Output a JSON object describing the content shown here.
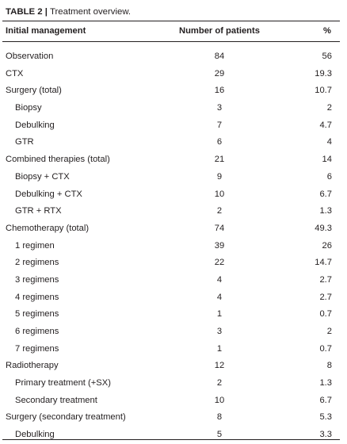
{
  "caption": {
    "label": "TABLE 2 |",
    "title": "Treatment overview."
  },
  "table": {
    "headers": [
      "Initial management",
      "Number of patients",
      "%"
    ],
    "rows": [
      {
        "label": "Observation",
        "count": "84",
        "percent": "56",
        "indent": false
      },
      {
        "label": "CTX",
        "count": "29",
        "percent": "19.3",
        "indent": false
      },
      {
        "label": "Surgery (total)",
        "count": "16",
        "percent": "10.7",
        "indent": false
      },
      {
        "label": "Biopsy",
        "count": "3",
        "percent": "2",
        "indent": true
      },
      {
        "label": "Debulking",
        "count": "7",
        "percent": "4.7",
        "indent": true
      },
      {
        "label": "GTR",
        "count": "6",
        "percent": "4",
        "indent": true
      },
      {
        "label": "Combined therapies (total)",
        "count": "21",
        "percent": "14",
        "indent": false
      },
      {
        "label": "Biopsy + CTX",
        "count": "9",
        "percent": "6",
        "indent": true
      },
      {
        "label": "Debulking + CTX",
        "count": "10",
        "percent": "6.7",
        "indent": true
      },
      {
        "label": "GTR + RTX",
        "count": "2",
        "percent": "1.3",
        "indent": true
      },
      {
        "label": "Chemotherapy (total)",
        "count": "74",
        "percent": "49.3",
        "indent": false
      },
      {
        "label": "1 regimen",
        "count": "39",
        "percent": "26",
        "indent": true
      },
      {
        "label": "2 regimens",
        "count": "22",
        "percent": "14.7",
        "indent": true
      },
      {
        "label": "3 regimens",
        "count": "4",
        "percent": "2.7",
        "indent": true
      },
      {
        "label": "4 regimens",
        "count": "4",
        "percent": "2.7",
        "indent": true
      },
      {
        "label": "5 regimens",
        "count": "1",
        "percent": "0.7",
        "indent": true
      },
      {
        "label": "6 regimens",
        "count": "3",
        "percent": "2",
        "indent": true
      },
      {
        "label": "7 regimens",
        "count": "1",
        "percent": "0.7",
        "indent": true
      },
      {
        "label": "Radiotherapy",
        "count": "12",
        "percent": "8",
        "indent": false
      },
      {
        "label": "Primary treatment (+SX)",
        "count": "2",
        "percent": "1.3",
        "indent": true
      },
      {
        "label": "Secondary treatment",
        "count": "10",
        "percent": "6.7",
        "indent": true
      },
      {
        "label": "Surgery (secondary treatment)",
        "count": "8",
        "percent": "5.3",
        "indent": false
      },
      {
        "label": "Debulking",
        "count": "5",
        "percent": "3.3",
        "indent": true
      }
    ]
  }
}
